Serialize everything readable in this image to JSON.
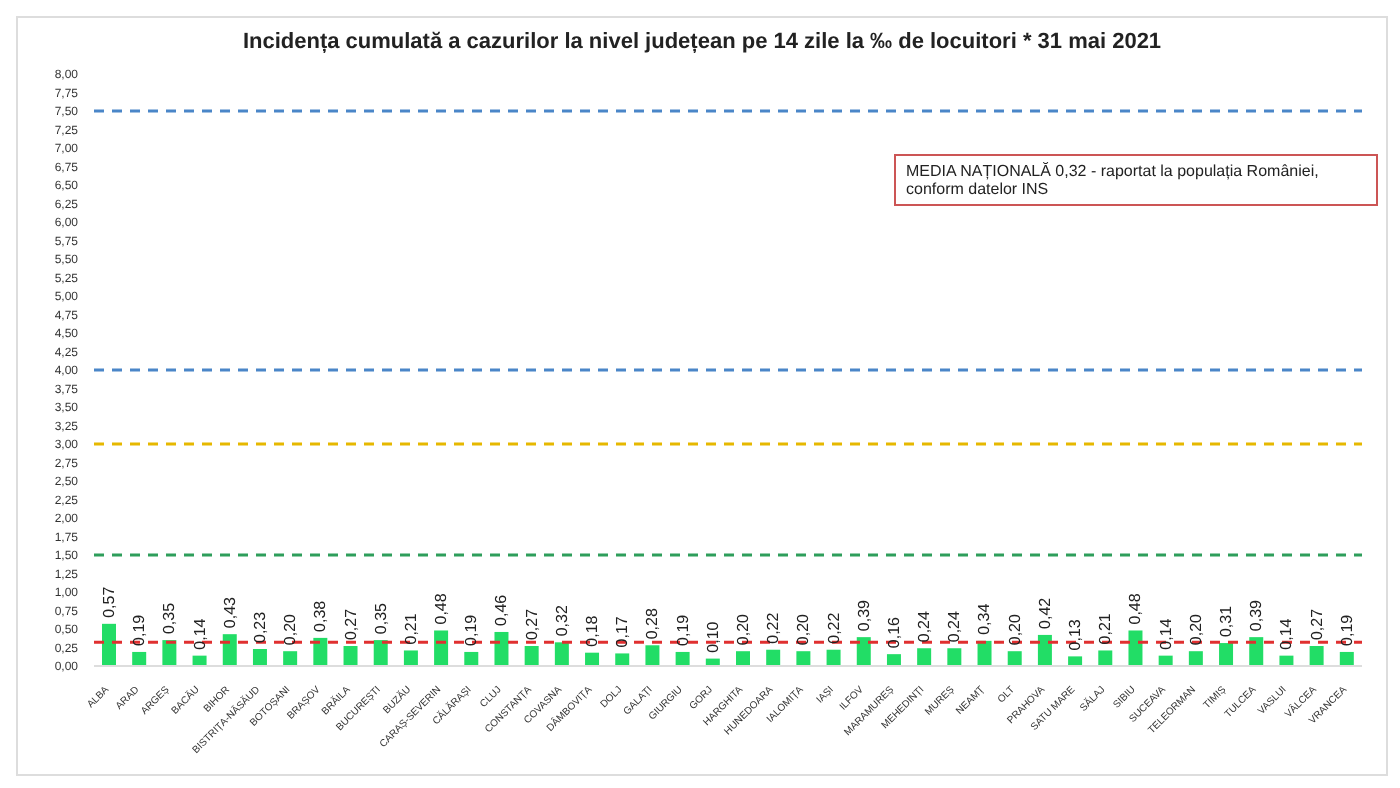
{
  "chart_data": {
    "type": "bar",
    "title": "Incidența cumulată a cazurilor la nivel județean pe 14 zile la ‰ de locuitori *  31 mai 2021",
    "categories": [
      "ALBA",
      "ARAD",
      "ARGEȘ",
      "BACĂU",
      "BIHOR",
      "BISTRIȚA-NĂSĂUD",
      "BOTOȘANI",
      "BRAȘOV",
      "BRĂILA",
      "BUCUREȘTI",
      "BUZĂU",
      "CARAȘ-SEVERIN",
      "CĂLĂRAȘI",
      "CLUJ",
      "CONSTANȚA",
      "COVASNA",
      "DÂMBOVIȚA",
      "DOLJ",
      "GALAȚI",
      "GIURGIU",
      "GORJ",
      "HARGHITA",
      "HUNEDOARA",
      "IALOMIȚA",
      "IAȘI",
      "ILFOV",
      "MARAMUREȘ",
      "MEHEDINȚI",
      "MUREȘ",
      "NEAMȚ",
      "OLT",
      "PRAHOVA",
      "SATU MARE",
      "SĂLAJ",
      "SIBIU",
      "SUCEAVA",
      "TELEORMAN",
      "TIMIȘ",
      "TULCEA",
      "VASLUI",
      "VÂLCEA",
      "VRANCEA"
    ],
    "values": [
      0.57,
      0.19,
      0.35,
      0.14,
      0.43,
      0.23,
      0.2,
      0.38,
      0.27,
      0.35,
      0.21,
      0.48,
      0.19,
      0.46,
      0.27,
      0.32,
      0.18,
      0.17,
      0.28,
      0.19,
      0.1,
      0.2,
      0.22,
      0.2,
      0.22,
      0.39,
      0.16,
      0.24,
      0.24,
      0.34,
      0.2,
      0.42,
      0.13,
      0.21,
      0.48,
      0.14,
      0.2,
      0.31,
      0.39,
      0.14,
      0.27,
      0.19
    ],
    "value_labels": [
      "0,57",
      "0,19",
      "0,35",
      "0,14",
      "0,43",
      "0,23",
      "0,20",
      "0,38",
      "0,27",
      "0,35",
      "0,21",
      "0,48",
      "0,19",
      "0,46",
      "0,27",
      "0,32",
      "0,18",
      "0,17",
      "0,28",
      "0,19",
      "0,10",
      "0,20",
      "0,22",
      "0,20",
      "0,22",
      "0,39",
      "0,16",
      "0,24",
      "0,24",
      "0,34",
      "0,20",
      "0,42",
      "0,13",
      "0,21",
      "0,48",
      "0,14",
      "0,20",
      "0,31",
      "0,39",
      "0,14",
      "0,27",
      "0,19"
    ],
    "color": "#22dd66",
    "ylim": [
      0,
      8
    ],
    "yticks": [
      {
        "value": 0,
        "label": "0,00"
      },
      {
        "value": 0.25,
        "label": "0,25"
      },
      {
        "value": 0.5,
        "label": "0,50"
      },
      {
        "value": 0.75,
        "label": "0,75"
      },
      {
        "value": 1,
        "label": "1,00"
      },
      {
        "value": 1.25,
        "label": "1,25"
      },
      {
        "value": 1.5,
        "label": "1,50"
      },
      {
        "value": 1.75,
        "label": "1,75"
      },
      {
        "value": 2,
        "label": "2,00"
      },
      {
        "value": 2.25,
        "label": "2,25"
      },
      {
        "value": 2.5,
        "label": "2,50"
      },
      {
        "value": 2.75,
        "label": "2,75"
      },
      {
        "value": 3,
        "label": "3,00"
      },
      {
        "value": 3.25,
        "label": "3,25"
      },
      {
        "value": 3.5,
        "label": "3,50"
      },
      {
        "value": 3.75,
        "label": "3,75"
      },
      {
        "value": 4,
        "label": "4,00"
      },
      {
        "value": 4.25,
        "label": "4,25"
      },
      {
        "value": 4.5,
        "label": "4,50"
      },
      {
        "value": 4.75,
        "label": "4,75"
      },
      {
        "value": 5,
        "label": "5,00"
      },
      {
        "value": 5.25,
        "label": "5,25"
      },
      {
        "value": 5.5,
        "label": "5,50"
      },
      {
        "value": 5.75,
        "label": "5,75"
      },
      {
        "value": 6,
        "label": "6,00"
      },
      {
        "value": 6.25,
        "label": "6,25"
      },
      {
        "value": 6.5,
        "label": "6,50"
      },
      {
        "value": 6.75,
        "label": "6,75"
      },
      {
        "value": 7,
        "label": "7,00"
      },
      {
        "value": 7.25,
        "label": "7,25"
      },
      {
        "value": 7.5,
        "label": "7,50"
      },
      {
        "value": 7.75,
        "label": "7,75"
      },
      {
        "value": 8,
        "label": "8,00"
      }
    ],
    "ref_lines": [
      {
        "axis": "y",
        "value": 7.5,
        "color": "#4a86c8",
        "line_style": "dashed"
      },
      {
        "axis": "y",
        "value": 4,
        "color": "#4a86c8",
        "line_style": "dashed"
      },
      {
        "axis": "y",
        "value": 3,
        "color": "#e6b800",
        "line_style": "dashed"
      },
      {
        "axis": "y",
        "value": 1.5,
        "color": "#2e9e5b",
        "line_style": "dashed"
      },
      {
        "axis": "y",
        "value": 0.32,
        "color": "#e03030",
        "line_style": "dashed"
      }
    ],
    "annotations": [
      "MEDIA NAȚIONALĂ 0,32 - raportat la populația României, conform datelor INS"
    ],
    "grid": false,
    "legend": false
  }
}
